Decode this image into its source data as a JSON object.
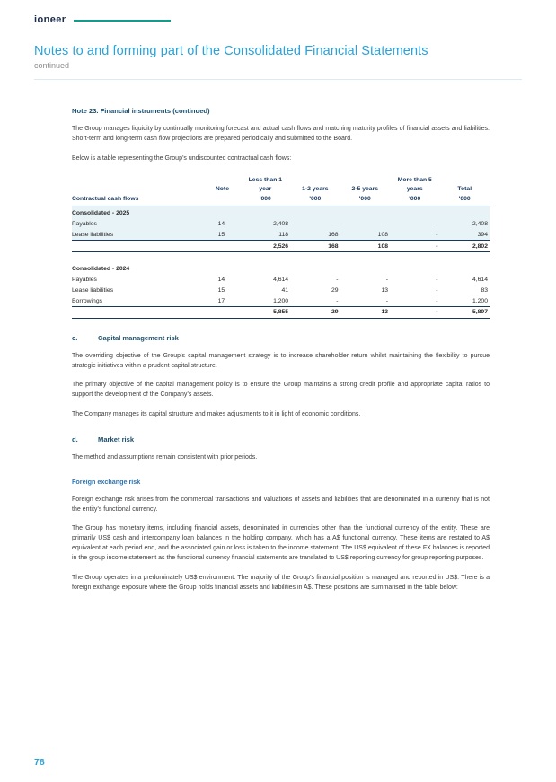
{
  "header": {
    "logo": "ioneer",
    "title": "Notes to and forming part of the Consolidated Financial Statements",
    "subtitle": "continued"
  },
  "note23": {
    "heading": "Note 23. Financial instruments (continued)",
    "para_liquidity": "The Group manages liquidity by continually monitoring forecast and actual cash flows and matching maturity profiles of financial assets and liabilities. Short-term and long-term cash flow projections are prepared periodically and submitted to the Board.",
    "para_table_intro": "Below is a table representing the Group’s undiscounted contractual cash flows:"
  },
  "table": {
    "header": {
      "contractual": "Contractual cash flows",
      "note": "Note",
      "less_line1": "Less than 1",
      "less_line2": "year",
      "y12": "1-2 years",
      "y25": "2-5 years",
      "more_line1": "More than 5",
      "more_line2": "years",
      "total": "Total",
      "unit": "'000"
    },
    "groups": [
      {
        "label": "Consolidated - 2025",
        "rows": [
          {
            "label": "Payables",
            "note": "14",
            "values": [
              "2,408",
              "-",
              "-",
              "-",
              "2,408"
            ]
          },
          {
            "label": "Lease liabilities",
            "note": "15",
            "values": [
              "118",
              "168",
              "108",
              "-",
              "394"
            ]
          }
        ],
        "total": [
          "2,526",
          "168",
          "108",
          "-",
          "2,802"
        ]
      },
      {
        "label": "Consolidated - 2024",
        "rows": [
          {
            "label": "Payables",
            "note": "14",
            "values": [
              "4,614",
              "-",
              "-",
              "-",
              "4,614"
            ]
          },
          {
            "label": "Lease liabilities",
            "note": "15",
            "values": [
              "41",
              "29",
              "13",
              "-",
              "83"
            ]
          },
          {
            "label": "Borrowings",
            "note": "17",
            "values": [
              "1,200",
              "-",
              "-",
              "-",
              "1,200"
            ]
          }
        ],
        "total": [
          "5,855",
          "29",
          "13",
          "-",
          "5,897"
        ]
      }
    ]
  },
  "sections": {
    "c": {
      "letter": "c.",
      "title": "Capital management risk",
      "para1": "The overriding objective of the Group’s capital management strategy is to increase shareholder return whilst maintaining the flexibility to pursue strategic initiatives within a prudent capital structure.",
      "para2": "The primary objective of the capital management policy is to ensure the Group maintains a strong credit profile and appropriate capital ratios to support the development of the Company’s assets.",
      "para3": "The Company manages its capital structure and makes adjustments to it in light of economic conditions."
    },
    "d": {
      "letter": "d.",
      "title": "Market risk",
      "para1": "The method and assumptions remain consistent with prior periods."
    }
  },
  "fx": {
    "heading": "Foreign exchange risk",
    "para1": "Foreign exchange risk arises from the commercial transactions and valuations of assets and liabilities that are denominated in a currency that is not the entity’s functional currency.",
    "para2": "The Group has monetary items, including financial assets, denominated in currencies other than the functional currency of the entity. These are primarily US$ cash and intercompany loan balances in the holding company, which has a A$ functional currency. These items are restated to A$ equivalent at each period end, and the associated gain or loss is taken to the income statement. The US$ equivalent of these FX balances is reported in the group income statement as the functional currency financial statements are translated to US$ reporting currency for group reporting purposes.",
    "para3": "The Group operates in a predominately US$ environment. The majority of the Group’s financial position is managed and reported in US$. There is a foreign exchange exposure where the Group holds financial assets and liabilities in A$. These positions are summarised in the table below:"
  },
  "footer": {
    "page_number": "78"
  },
  "colors": {
    "accent_blue": "#2aa2d8",
    "heading_navy": "#1c4f6b",
    "subheading_blue": "#2e76b5",
    "table_rule_navy": "#17375e",
    "row_highlight": "#e8f3f8",
    "logo_teal": "#0f9e8e"
  }
}
